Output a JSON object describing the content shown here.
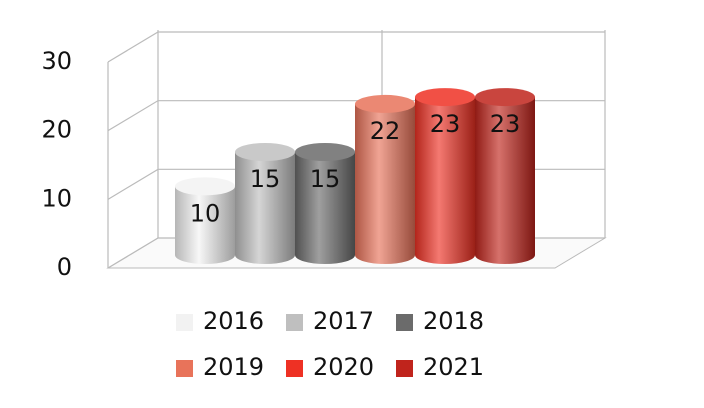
{
  "chart_data": {
    "type": "cylinder",
    "series": [
      {
        "name": "2016",
        "color": "#f2f2f2",
        "values": [
          10
        ]
      },
      {
        "name": "2017",
        "color": "#bfbfbf",
        "values": [
          15
        ]
      },
      {
        "name": "2018",
        "color": "#6b6b6b",
        "values": [
          15
        ]
      },
      {
        "name": "2019",
        "color": "#e8735a",
        "values": [
          22
        ]
      },
      {
        "name": "2020",
        "color": "#ee3124",
        "values": [
          23
        ]
      },
      {
        "name": "2021",
        "color": "#c0241c",
        "values": [
          23
        ]
      }
    ],
    "ylim": [
      0,
      30
    ],
    "yticks": [
      0,
      10,
      20,
      30
    ],
    "grid": true,
    "legend": "bottom"
  }
}
